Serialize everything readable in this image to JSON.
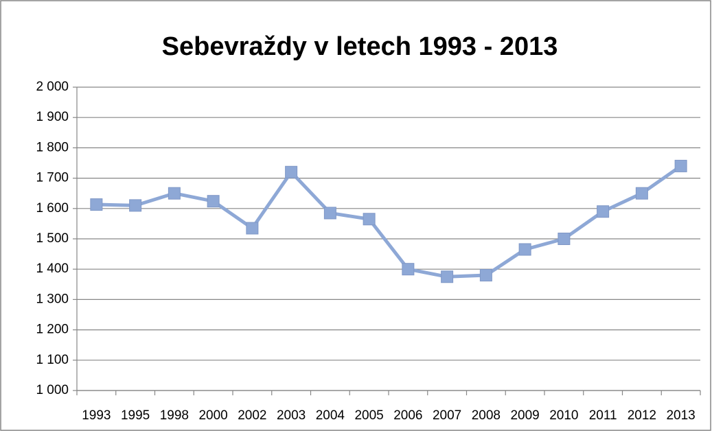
{
  "chart_data": {
    "type": "line",
    "title": "Sebevraždy v letech 1993 - 2013",
    "categories": [
      "1993",
      "1995",
      "1998",
      "2000",
      "2002",
      "2003",
      "2004",
      "2005",
      "2006",
      "2007",
      "2008",
      "2009",
      "2010",
      "2011",
      "2012",
      "2013"
    ],
    "values": [
      1613,
      1610,
      1650,
      1624,
      1535,
      1720,
      1585,
      1565,
      1400,
      1375,
      1380,
      1465,
      1500,
      1590,
      1650,
      1740
    ],
    "color": "#8ea8d6",
    "ylim": [
      1000,
      2000
    ],
    "yticks": [
      {
        "value": 1000,
        "label": "1 000"
      },
      {
        "value": 1100,
        "label": "1 100"
      },
      {
        "value": 1200,
        "label": "1 200"
      },
      {
        "value": 1300,
        "label": "1 300"
      },
      {
        "value": 1400,
        "label": "1 400"
      },
      {
        "value": 1500,
        "label": "1 500"
      },
      {
        "value": 1600,
        "label": "1 600"
      },
      {
        "value": 1700,
        "label": "1 700"
      },
      {
        "value": 1800,
        "label": "1 800"
      },
      {
        "value": 1900,
        "label": "1 900"
      },
      {
        "value": 2000,
        "label": "2 000"
      }
    ],
    "grid": true
  }
}
